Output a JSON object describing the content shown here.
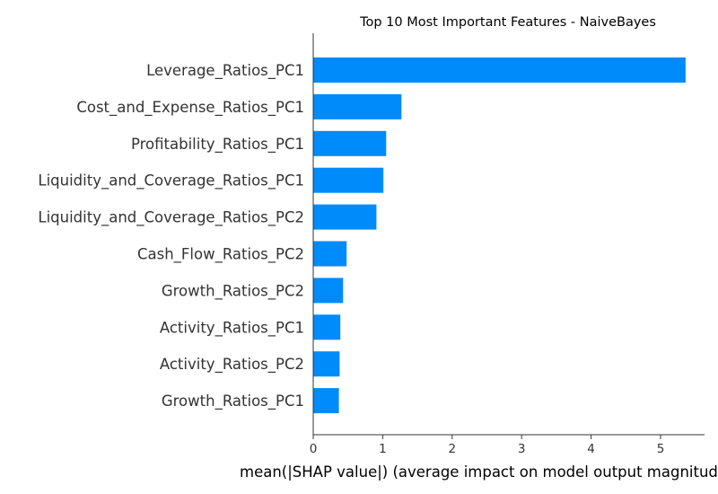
{
  "chart_data": {
    "type": "bar",
    "orientation": "horizontal",
    "title": "Top 10 Most Important Features - NaiveBayes",
    "xlabel": "mean(|SHAP value|) (average impact on model output magnitude)",
    "ylabel": "",
    "categories": [
      "Leverage_Ratios_PC1",
      "Cost_and_Expense_Ratios_PC1",
      "Profitability_Ratios_PC1",
      "Liquidity_and_Coverage_Ratios_PC1",
      "Liquidity_and_Coverage_Ratios_PC2",
      "Cash_Flow_Ratios_PC2",
      "Growth_Ratios_PC2",
      "Activity_Ratios_PC1",
      "Activity_Ratios_PC2",
      "Growth_Ratios_PC1"
    ],
    "values": [
      5.36,
      1.27,
      1.05,
      1.01,
      0.91,
      0.48,
      0.43,
      0.39,
      0.38,
      0.37
    ],
    "xlim": [
      0,
      5.6
    ],
    "xticks": [
      "0",
      "1",
      "2",
      "3",
      "4",
      "5"
    ],
    "bar_color": "#008bfb",
    "grid": false
  }
}
